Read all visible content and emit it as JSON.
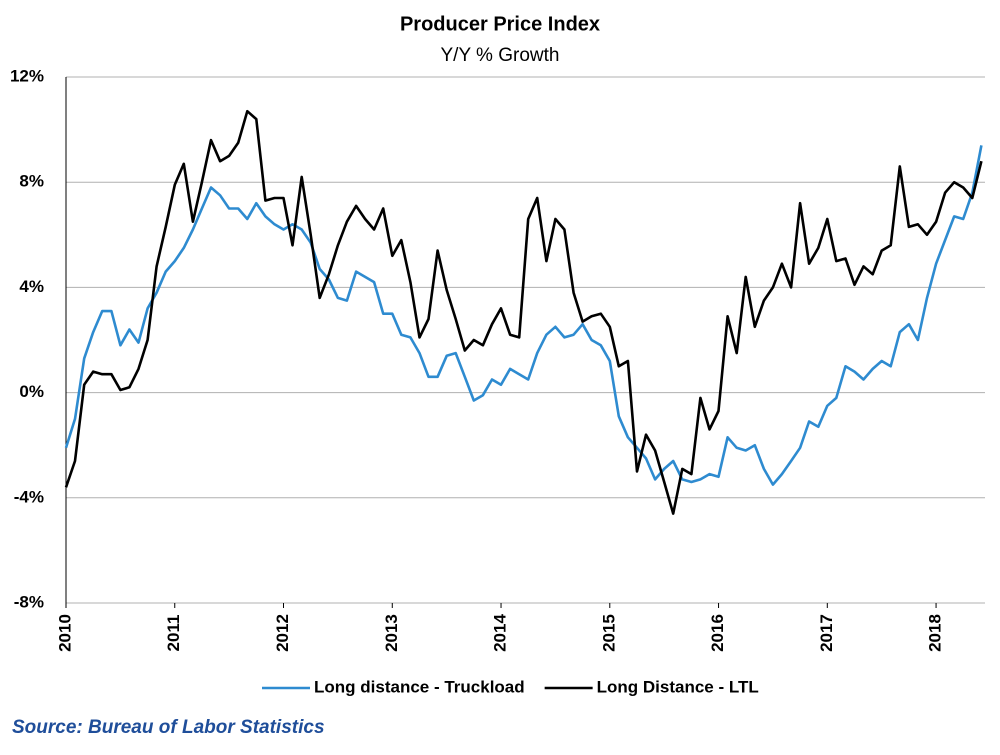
{
  "chart_data": {
    "type": "line",
    "title": "Producer Price Index",
    "subtitle": "Y/Y % Growth",
    "source": "Source: Bureau of Labor Statistics",
    "x": [
      2010,
      2010.083,
      2010.167,
      2010.25,
      2010.333,
      2010.417,
      2010.5,
      2010.583,
      2010.667,
      2010.75,
      2010.833,
      2010.917,
      2011,
      2011.083,
      2011.167,
      2011.25,
      2011.333,
      2011.417,
      2011.5,
      2011.583,
      2011.667,
      2011.75,
      2011.833,
      2011.917,
      2012,
      2012.083,
      2012.167,
      2012.25,
      2012.333,
      2012.417,
      2012.5,
      2012.583,
      2012.667,
      2012.75,
      2012.833,
      2012.917,
      2013,
      2013.083,
      2013.167,
      2013.25,
      2013.333,
      2013.417,
      2013.5,
      2013.583,
      2013.667,
      2013.75,
      2013.833,
      2013.917,
      2014,
      2014.083,
      2014.167,
      2014.25,
      2014.333,
      2014.417,
      2014.5,
      2014.583,
      2014.667,
      2014.75,
      2014.833,
      2014.917,
      2015,
      2015.083,
      2015.167,
      2015.25,
      2015.333,
      2015.417,
      2015.5,
      2015.583,
      2015.667,
      2015.75,
      2015.833,
      2015.917,
      2016,
      2016.083,
      2016.167,
      2016.25,
      2016.333,
      2016.417,
      2016.5,
      2016.583,
      2016.667,
      2016.75,
      2016.833,
      2016.917,
      2017,
      2017.083,
      2017.167,
      2017.25,
      2017.333,
      2017.417,
      2017.5,
      2017.583,
      2017.667,
      2017.75,
      2017.833,
      2017.917,
      2018,
      2018.083,
      2018.167,
      2018.25,
      2018.333,
      2018.417
    ],
    "series": [
      {
        "name": "Long distance - Truckload",
        "color": "#2e8bd0",
        "values": [
          -2.1,
          -1.0,
          1.3,
          2.3,
          3.1,
          3.1,
          1.8,
          2.4,
          1.9,
          3.2,
          3.8,
          4.6,
          5.0,
          5.5,
          6.2,
          7.0,
          7.8,
          7.5,
          7.0,
          7.0,
          6.6,
          7.2,
          6.7,
          6.4,
          6.2,
          6.4,
          6.2,
          5.7,
          4.7,
          4.3,
          3.6,
          3.5,
          4.6,
          4.4,
          4.2,
          3.0,
          3.0,
          2.2,
          2.1,
          1.5,
          0.6,
          0.6,
          1.4,
          1.5,
          0.6,
          -0.3,
          -0.1,
          0.5,
          0.3,
          0.9,
          0.7,
          0.5,
          1.5,
          2.2,
          2.5,
          2.1,
          2.2,
          2.6,
          2.0,
          1.8,
          1.2,
          -0.9,
          -1.7,
          -2.1,
          -2.5,
          -3.3,
          -2.9,
          -2.6,
          -3.3,
          -3.4,
          -3.3,
          -3.1,
          -3.2,
          -1.7,
          -2.1,
          -2.2,
          -2.0,
          -2.9,
          -3.5,
          -3.1,
          -2.6,
          -2.1,
          -1.1,
          -1.3,
          -0.5,
          -0.2,
          1.0,
          0.8,
          0.5,
          0.9,
          1.2,
          1.0,
          2.3,
          2.6,
          2.0,
          3.6,
          4.9,
          5.8,
          6.7,
          6.6,
          7.6,
          9.4
        ]
      },
      {
        "name": "Long Distance - LTL",
        "color": "#000000",
        "values": [
          -3.6,
          -2.6,
          0.3,
          0.8,
          0.7,
          0.7,
          0.1,
          0.2,
          0.9,
          2.0,
          4.8,
          6.3,
          7.9,
          8.7,
          6.5,
          8.0,
          9.6,
          8.8,
          9.0,
          9.5,
          10.7,
          10.4,
          7.3,
          7.4,
          7.4,
          5.6,
          8.2,
          6.0,
          3.6,
          4.5,
          5.6,
          6.5,
          7.1,
          6.6,
          6.2,
          7.0,
          5.2,
          5.8,
          4.2,
          2.1,
          2.8,
          5.4,
          3.9,
          2.8,
          1.6,
          2.0,
          1.8,
          2.6,
          3.2,
          2.2,
          2.1,
          6.6,
          7.4,
          5.0,
          6.6,
          6.2,
          3.8,
          2.7,
          2.9,
          3.0,
          2.5,
          1.0,
          1.2,
          -3.0,
          -1.6,
          -2.2,
          -3.4,
          -4.6,
          -2.9,
          -3.1,
          -0.2,
          -1.4,
          -0.7,
          2.9,
          1.5,
          4.4,
          2.5,
          3.5,
          4.0,
          4.9,
          4.0,
          7.2,
          4.9,
          5.5,
          6.6,
          5.0,
          5.1,
          4.1,
          4.8,
          4.5,
          5.4,
          5.6,
          8.6,
          6.3,
          6.4,
          6.0,
          6.5,
          7.6,
          8.0,
          7.8,
          7.4,
          8.8
        ]
      }
    ],
    "xlim": [
      2010,
      2018.45
    ],
    "xticks": [
      2010,
      2011,
      2012,
      2013,
      2014,
      2015,
      2016,
      2017,
      2018
    ],
    "ylim": [
      -8,
      12
    ],
    "yticks": [
      {
        "value": -8,
        "label": "-8%"
      },
      {
        "value": -4,
        "label": "-4%"
      },
      {
        "value": 0,
        "label": "0%"
      },
      {
        "value": 4,
        "label": "4%"
      },
      {
        "value": 8,
        "label": "8%"
      },
      {
        "value": 12,
        "label": "12%"
      }
    ],
    "grid": true,
    "legend": "bottom"
  }
}
